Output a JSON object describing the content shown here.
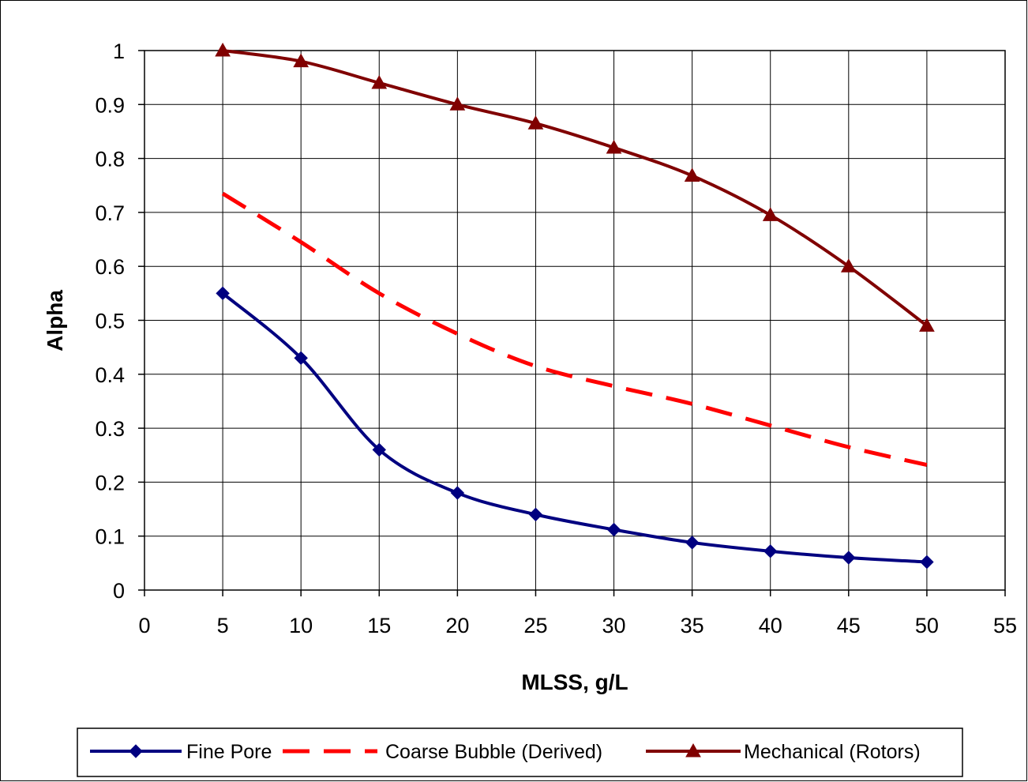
{
  "chart_data": {
    "type": "line",
    "title": "",
    "xlabel": "MLSS, g/L",
    "ylabel": "Alpha",
    "xlim": [
      0,
      55
    ],
    "ylim": [
      0,
      1
    ],
    "xticks": [
      0,
      5,
      10,
      15,
      20,
      25,
      30,
      35,
      40,
      45,
      50,
      55
    ],
    "yticks": [
      0,
      0.1,
      0.2,
      0.3,
      0.4,
      0.5,
      0.6,
      0.7,
      0.8,
      0.9,
      1
    ],
    "grid": true,
    "legend_position": "bottom",
    "series": [
      {
        "name": "Fine Pore",
        "color": "#000080",
        "style": "solid",
        "marker": "diamond",
        "x": [
          5,
          10,
          15,
          20,
          25,
          30,
          35,
          40,
          45,
          50
        ],
        "y": [
          0.55,
          0.43,
          0.26,
          0.18,
          0.14,
          0.112,
          0.088,
          0.072,
          0.06,
          0.052
        ]
      },
      {
        "name": "Coarse Bubble (Derived)",
        "color": "#ff0000",
        "style": "dashed",
        "marker": "none",
        "x": [
          5,
          10,
          15,
          20,
          25,
          30,
          35,
          40,
          45,
          50
        ],
        "y": [
          0.735,
          0.645,
          0.55,
          0.475,
          0.415,
          0.378,
          0.345,
          0.305,
          0.265,
          0.232
        ]
      },
      {
        "name": "Mechanical (Rotors)",
        "color": "#800000",
        "style": "solid",
        "marker": "triangle",
        "x": [
          5,
          10,
          15,
          20,
          25,
          30,
          35,
          40,
          45,
          50
        ],
        "y": [
          1.0,
          0.98,
          0.94,
          0.9,
          0.865,
          0.82,
          0.768,
          0.695,
          0.6,
          0.49
        ]
      }
    ]
  }
}
